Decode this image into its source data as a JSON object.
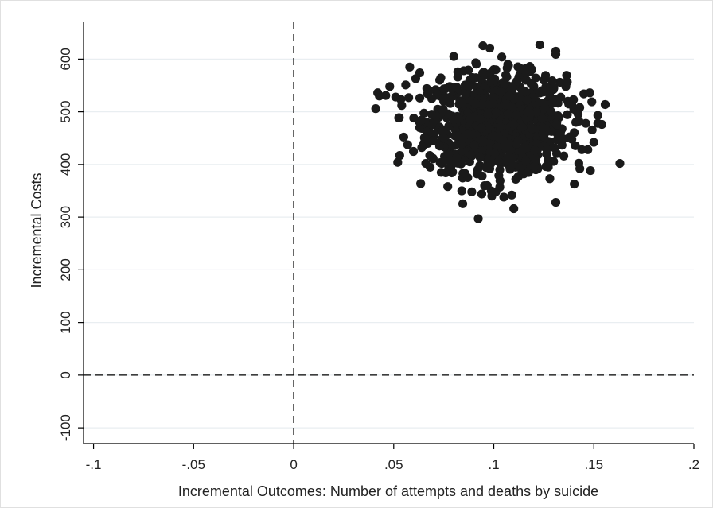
{
  "chart_data": {
    "type": "scatter",
    "title": "",
    "xlabel": "Incremental Outcomes: Number of attempts and deaths by suicide",
    "ylabel": "Incremental Costs",
    "xlim": [
      -0.105,
      0.2
    ],
    "ylim": [
      -130,
      670
    ],
    "xticks": [
      -0.1,
      -0.05,
      0,
      0.05,
      0.1,
      0.15,
      0.2
    ],
    "xtick_labels": [
      "-.1",
      "-.05",
      "0",
      ".05",
      ".1",
      ".15",
      ".2"
    ],
    "yticks": [
      -100,
      0,
      100,
      200,
      300,
      400,
      500,
      600
    ],
    "ytick_labels": [
      "-100",
      "0",
      "100",
      "200",
      "300",
      "400",
      "500",
      "600"
    ],
    "grid": true,
    "reference_lines": {
      "x": 0,
      "y": 0,
      "style": "dashed"
    },
    "colors": {
      "marker": "#1a1a1a",
      "grid": "#e9eef1",
      "axis": "#000000",
      "frame": "#e0e0e0"
    },
    "series": [
      {
        "points": [
          [
            0.041,
            506
          ],
          [
            0.042,
            536
          ],
          [
            0.046,
            531
          ],
          [
            0.048,
            548
          ],
          [
            0.051,
            528
          ],
          [
            0.052,
            404
          ],
          [
            0.053,
            417
          ],
          [
            0.054,
            512
          ],
          [
            0.055,
            452
          ],
          [
            0.056,
            551
          ],
          [
            0.058,
            585
          ],
          [
            0.061,
            563
          ],
          [
            0.063,
            574
          ],
          [
            0.064,
            432
          ],
          [
            0.066,
            402
          ],
          [
            0.068,
            417
          ],
          [
            0.071,
            542
          ],
          [
            0.074,
            402
          ],
          [
            0.076,
            384
          ],
          [
            0.077,
            358
          ],
          [
            0.079,
            384
          ],
          [
            0.08,
            605
          ],
          [
            0.082,
            566
          ],
          [
            0.084,
            350
          ],
          [
            0.087,
            375
          ],
          [
            0.089,
            348
          ],
          [
            0.091,
            593
          ],
          [
            0.092,
            390
          ],
          [
            0.094,
            344
          ],
          [
            0.097,
            405
          ],
          [
            0.098,
            621
          ],
          [
            0.099,
            340
          ],
          [
            0.101,
            348
          ],
          [
            0.103,
            357
          ],
          [
            0.104,
            604
          ],
          [
            0.105,
            338
          ],
          [
            0.107,
            590
          ],
          [
            0.109,
            342
          ],
          [
            0.11,
            316
          ],
          [
            0.111,
            372
          ],
          [
            0.112,
            376
          ],
          [
            0.115,
            382
          ],
          [
            0.118,
            586
          ],
          [
            0.119,
            580
          ],
          [
            0.121,
            390
          ],
          [
            0.123,
            627
          ],
          [
            0.125,
            560
          ],
          [
            0.126,
            396
          ],
          [
            0.128,
            373
          ],
          [
            0.131,
            615
          ],
          [
            0.131,
            609
          ],
          [
            0.131,
            328
          ],
          [
            0.133,
            556
          ],
          [
            0.135,
            416
          ],
          [
            0.137,
            520
          ],
          [
            0.139,
            448
          ],
          [
            0.141,
            480
          ],
          [
            0.143,
            392
          ],
          [
            0.144,
            428
          ],
          [
            0.145,
            534
          ],
          [
            0.146,
            478
          ],
          [
            0.147,
            428
          ],
          [
            0.148,
            536
          ],
          [
            0.149,
            519
          ],
          [
            0.15,
            442
          ],
          [
            0.152,
            493
          ],
          [
            0.152,
            478
          ],
          [
            0.154,
            476
          ],
          [
            0.163,
            402
          ],
          [
            0.14,
            505
          ],
          [
            0.136,
            548
          ],
          [
            0.13,
            545
          ],
          [
            0.128,
            530
          ],
          [
            0.06,
            488
          ],
          [
            0.063,
            470
          ],
          [
            0.067,
            440
          ],
          [
            0.07,
            455
          ],
          [
            0.072,
            505
          ],
          [
            0.075,
            520
          ],
          [
            0.069,
            525
          ],
          [
            0.073,
            560
          ],
          [
            0.078,
            548
          ],
          [
            0.085,
            578
          ],
          [
            0.088,
            560
          ],
          [
            0.095,
            575
          ],
          [
            0.1,
            580
          ],
          [
            0.106,
            570
          ],
          [
            0.113,
            570
          ],
          [
            0.116,
            560
          ],
          [
            0.12,
            548
          ],
          [
            0.124,
            540
          ],
          [
            0.127,
            510
          ],
          [
            0.129,
            490
          ],
          [
            0.132,
            470
          ],
          [
            0.134,
            450
          ],
          [
            0.127,
            432
          ],
          [
            0.122,
            418
          ],
          [
            0.117,
            408
          ],
          [
            0.113,
            400
          ],
          [
            0.108,
            395
          ],
          [
            0.103,
            390
          ],
          [
            0.098,
            392
          ],
          [
            0.093,
            398
          ],
          [
            0.088,
            405
          ],
          [
            0.083,
            412
          ],
          [
            0.079,
            420
          ],
          [
            0.076,
            432
          ],
          [
            0.074,
            448
          ],
          [
            0.072,
            465
          ],
          [
            0.071,
            482
          ]
        ]
      }
    ]
  }
}
